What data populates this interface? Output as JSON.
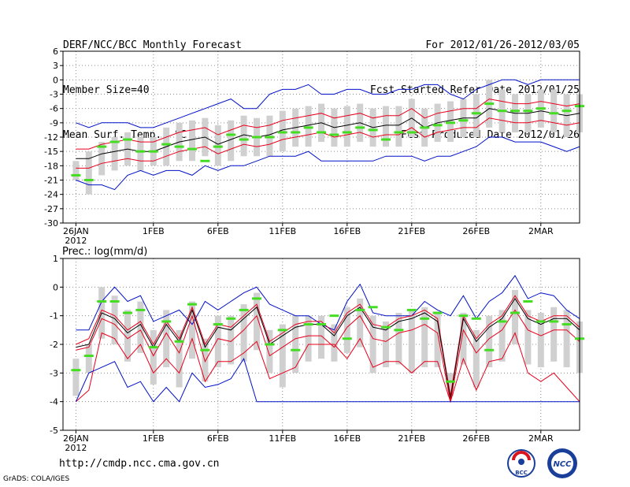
{
  "header_left": [
    "DERF/NCC/BCC Monthly Forecast",
    "Member Size=40",
    "Mean Surf. Temp.: °C"
  ],
  "header_right": [
    "For 2012/01/26-2012/03/05",
    "Fcst Started Refer Date 2012/01/25",
    "Fcst Produced Date 2012/01/26"
  ],
  "footer_url": "http://cmdp.ncc.cma.gov.cn",
  "grads_label": "GrADS: COLA/IGES",
  "logos": {
    "bcc": "BCC",
    "ncc": "NCC"
  },
  "colors": {
    "mean": "#000000",
    "spread": "#e8001c",
    "extreme": "#0010c8",
    "box": "#d0d0d0",
    "obs": "#44dd22",
    "grid": "#8c8c8c"
  },
  "chart_data": [
    {
      "type": "line",
      "title": "Mean Surf. Temp.: °C",
      "xlabel": "",
      "ylabel": "",
      "ylim": [
        -30,
        6
      ],
      "yticks": [
        6,
        3,
        0,
        -3,
        -6,
        -9,
        -12,
        -15,
        -18,
        -21,
        -24,
        -27,
        -30
      ],
      "xticks": [
        {
          "day": 0,
          "label": "26JAN",
          "sub": "2012"
        },
        {
          "day": 6,
          "label": "1FEB"
        },
        {
          "day": 11,
          "label": "6FEB"
        },
        {
          "day": 16,
          "label": "11FEB"
        },
        {
          "day": 21,
          "label": "16FEB"
        },
        {
          "day": 26,
          "label": "21FEB"
        },
        {
          "day": 31,
          "label": "26FEB"
        },
        {
          "day": 36,
          "label": "2MAR"
        }
      ],
      "x": [
        0,
        1,
        2,
        3,
        4,
        5,
        6,
        7,
        8,
        9,
        10,
        11,
        12,
        13,
        14,
        15,
        16,
        17,
        18,
        19,
        20,
        21,
        22,
        23,
        24,
        25,
        26,
        27,
        28,
        29,
        30,
        31,
        32,
        33,
        34,
        35,
        36,
        37,
        38,
        39
      ],
      "series": [
        {
          "name": "max",
          "role": "extreme",
          "values": [
            -9,
            -10,
            -9,
            -9,
            -9,
            -10,
            -10,
            -9,
            -8,
            -7,
            -6,
            -5,
            -4,
            -6,
            -6,
            -3,
            -2,
            -2,
            -1,
            -3,
            -3,
            -2,
            -2,
            -3,
            -3,
            -2,
            -2,
            -1,
            -1,
            -3,
            -4,
            -2,
            -1,
            0,
            0,
            -1,
            0,
            0,
            0,
            0
          ]
        },
        {
          "name": "upper",
          "role": "spread",
          "values": [
            -14.5,
            -14.5,
            -13.5,
            -13,
            -12.5,
            -13,
            -13,
            -12,
            -11,
            -10.5,
            -10,
            -11.5,
            -10.5,
            -9.5,
            -10,
            -9.5,
            -8.5,
            -8,
            -7.5,
            -7,
            -8,
            -7.5,
            -7,
            -8,
            -7.5,
            -7.5,
            -6,
            -8,
            -7,
            -6.5,
            -6,
            -6,
            -4,
            -4.5,
            -5,
            -5,
            -4.5,
            -5,
            -5.5,
            -5
          ]
        },
        {
          "name": "mean",
          "role": "mean",
          "values": [
            -16.5,
            -16.5,
            -15.5,
            -15,
            -14.5,
            -15,
            -15,
            -14,
            -13,
            -12.5,
            -12,
            -13.5,
            -12.5,
            -11.5,
            -12,
            -11.5,
            -10.5,
            -10,
            -9.5,
            -9,
            -10,
            -9.5,
            -9,
            -10,
            -9.5,
            -9.5,
            -8,
            -10,
            -9,
            -8.5,
            -8,
            -8,
            -6,
            -6.5,
            -7,
            -7,
            -6.5,
            -7,
            -7.5,
            -7
          ]
        },
        {
          "name": "lower",
          "role": "spread",
          "values": [
            -18.5,
            -18.5,
            -17.5,
            -17,
            -16.5,
            -17,
            -17,
            -16,
            -15,
            -14.5,
            -14,
            -15.5,
            -14.5,
            -13.5,
            -14,
            -13.5,
            -12.5,
            -12,
            -11.5,
            -11,
            -12,
            -11.5,
            -11,
            -12,
            -11.5,
            -11.5,
            -10,
            -12,
            -11,
            -10.5,
            -10,
            -10,
            -8,
            -8.5,
            -9,
            -9,
            -8.5,
            -9,
            -9.5,
            -9
          ]
        },
        {
          "name": "min",
          "role": "extreme",
          "values": [
            -21,
            -22,
            -22,
            -23,
            -20,
            -19,
            -20,
            -19,
            -19,
            -20,
            -18,
            -19,
            -18,
            -18,
            -17,
            -16,
            -16,
            -16,
            -15,
            -17,
            -17,
            -17,
            -17,
            -17,
            -16,
            -16,
            -16,
            -17,
            -16,
            -16,
            -15,
            -14,
            -12,
            -12,
            -13,
            -13,
            -13,
            -14,
            -15,
            -14
          ]
        },
        {
          "name": "box_high",
          "role": "box",
          "values": [
            -17,
            -15,
            -13,
            -12,
            -11,
            -12,
            -12,
            -10,
            -9,
            -8.5,
            -8,
            -9.5,
            -8.5,
            -7.5,
            -8,
            -7.5,
            -6.5,
            -6,
            -5.5,
            -5,
            -6,
            -5.5,
            -5,
            -6,
            -5.5,
            -5.5,
            -4,
            -6,
            -5,
            -4.5,
            -4,
            -3,
            0,
            -2,
            -3,
            -3,
            -2,
            -2,
            -3,
            -3
          ]
        },
        {
          "name": "box_low",
          "role": "box",
          "values": [
            -21,
            -24,
            -20,
            -19,
            -18,
            -19,
            -18,
            -18,
            -17,
            -17,
            -16,
            -18,
            -17,
            -16,
            -16,
            -16,
            -15,
            -14,
            -14,
            -13,
            -14,
            -14,
            -13,
            -14,
            -14,
            -14,
            -12,
            -14,
            -13,
            -13,
            -12,
            -12,
            -10,
            -11,
            -11,
            -11,
            -10,
            -11,
            -12,
            -11
          ]
        },
        {
          "name": "obs",
          "role": "obs",
          "values": [
            -20,
            -21,
            -14,
            -13,
            -12.5,
            -15,
            -15,
            -13.5,
            -14,
            -14.5,
            -17,
            -14,
            -11.5,
            -12.5,
            -12,
            -12,
            -11,
            -11,
            -10,
            -11,
            -11.5,
            -11,
            -10,
            -10.5,
            -12.5,
            -11,
            -11,
            -10,
            -9.5,
            -9,
            -8.5,
            -7,
            -5,
            -6.5,
            -6.5,
            -6.5,
            -6,
            -7,
            -6.5,
            -5.5
          ]
        }
      ]
    },
    {
      "type": "line",
      "title": "Prec.: log(mm/d)",
      "xlabel": "",
      "ylabel": "",
      "ylim": [
        -5,
        1
      ],
      "yticks": [
        1,
        0,
        -1,
        -2,
        -3,
        -4,
        -5
      ],
      "xticks": [
        {
          "day": 0,
          "label": "26JAN",
          "sub": "2012"
        },
        {
          "day": 6,
          "label": "1FEB"
        },
        {
          "day": 11,
          "label": "6FEB"
        },
        {
          "day": 16,
          "label": "11FEB"
        },
        {
          "day": 21,
          "label": "16FEB"
        },
        {
          "day": 26,
          "label": "21FEB"
        },
        {
          "day": 31,
          "label": "26FEB"
        },
        {
          "day": 36,
          "label": "2MAR"
        }
      ],
      "x": [
        0,
        1,
        2,
        3,
        4,
        5,
        6,
        7,
        8,
        9,
        10,
        11,
        12,
        13,
        14,
        15,
        16,
        17,
        18,
        19,
        20,
        21,
        22,
        23,
        24,
        25,
        26,
        27,
        28,
        29,
        30,
        31,
        32,
        33,
        34,
        35,
        36,
        37,
        38,
        39
      ],
      "series": [
        {
          "name": "max",
          "role": "extreme",
          "values": [
            -1.5,
            -1.5,
            -0.5,
            0,
            -0.5,
            -0.3,
            -1.2,
            -1,
            -0.8,
            -1.3,
            -0.5,
            -0.8,
            -0.5,
            -0.2,
            0,
            -0.6,
            -0.8,
            -1,
            -1,
            -1.3,
            -1.5,
            -0.5,
            0.1,
            -0.9,
            -1,
            -1,
            -1,
            -0.5,
            -0.8,
            -1,
            -0.3,
            -1.1,
            -0.5,
            -0.2,
            0.4,
            -0.4,
            -0.2,
            -0.3,
            -0.8,
            -1.1
          ]
        },
        {
          "name": "upper",
          "role": "spread",
          "values": [
            -2.0,
            -1.8,
            -0.8,
            -1.0,
            -1.5,
            -1.2,
            -2.0,
            -1.2,
            -1.8,
            -0.7,
            -2.0,
            -1.3,
            -1.4,
            -1.0,
            -0.6,
            -1.9,
            -1.6,
            -1.3,
            -1.2,
            -1.2,
            -1.6,
            -0.9,
            -0.6,
            -1.3,
            -1.4,
            -1.1,
            -1.0,
            -0.8,
            -1.1,
            -3.8,
            -1.0,
            -1.8,
            -1.3,
            -1.0,
            -0.3,
            -1.0,
            -1.2,
            -1.0,
            -1.0,
            -1.4
          ]
        },
        {
          "name": "mean",
          "role": "mean",
          "values": [
            -2.1,
            -2.0,
            -0.9,
            -1.1,
            -1.6,
            -1.3,
            -2.1,
            -1.3,
            -1.9,
            -0.8,
            -2.1,
            -1.4,
            -1.5,
            -1.1,
            -0.7,
            -2.0,
            -1.7,
            -1.4,
            -1.3,
            -1.3,
            -1.7,
            -1.0,
            -0.7,
            -1.4,
            -1.5,
            -1.2,
            -1.1,
            -0.9,
            -1.2,
            -3.9,
            -1.1,
            -1.9,
            -1.4,
            -1.1,
            -0.4,
            -1.1,
            -1.3,
            -1.1,
            -1.1,
            -1.5
          ]
        },
        {
          "name": "lower",
          "role": "spread",
          "values": [
            -2.2,
            -2.1,
            -1.1,
            -1.3,
            -1.8,
            -1.5,
            -2.4,
            -1.6,
            -2.3,
            -1.0,
            -2.6,
            -1.8,
            -1.9,
            -1.5,
            -1.0,
            -2.4,
            -2.1,
            -1.8,
            -1.7,
            -1.7,
            -2.1,
            -1.4,
            -1.0,
            -1.8,
            -1.9,
            -1.6,
            -1.5,
            -1.3,
            -1.6,
            -4.0,
            -1.5,
            -2.3,
            -1.8,
            -1.5,
            -0.8,
            -1.5,
            -1.7,
            -1.5,
            -1.5,
            -1.9
          ]
        },
        {
          "name": "low2",
          "role": "spread",
          "values": [
            -4.0,
            -3.6,
            -1.6,
            -1.8,
            -2.5,
            -2.0,
            -3.0,
            -2.5,
            -3.0,
            -1.8,
            -3.3,
            -2.6,
            -2.6,
            -2.3,
            -1.9,
            -3.2,
            -3.0,
            -2.8,
            -2.0,
            -2.0,
            -2.0,
            -2.5,
            -1.8,
            -2.8,
            -2.6,
            -2.6,
            -3.0,
            -2.6,
            -2.6,
            -4.0,
            -2.5,
            -3.6,
            -2.6,
            -2.5,
            -1.6,
            -3.0,
            -3.3,
            -3.0,
            -3.5,
            -4.0
          ]
        },
        {
          "name": "min",
          "role": "extreme",
          "values": [
            -4,
            -3,
            -2.8,
            -2.6,
            -3.5,
            -3.3,
            -4,
            -3.5,
            -4,
            -3,
            -3.5,
            -3.4,
            -3.2,
            -2.5,
            -4,
            -4,
            -4,
            -4,
            -4,
            -4,
            -4,
            -4,
            -4,
            -4,
            -4,
            -4,
            -4,
            -4,
            -4,
            -4,
            -4,
            -4,
            -4,
            -4,
            -4,
            -4,
            -4,
            -4,
            -4,
            -4
          ]
        },
        {
          "name": "box_high",
          "role": "box",
          "values": [
            -2.5,
            -2.0,
            0,
            -0.3,
            -0.8,
            -0.5,
            -1.5,
            -0.8,
            -1.5,
            -0.5,
            -1.8,
            -1.0,
            -1.0,
            -0.6,
            -0.2,
            -1.5,
            -1.3,
            -1.0,
            -1.0,
            -1.0,
            -1.3,
            -0.7,
            -0.4,
            -1.0,
            -1.2,
            -0.9,
            -0.8,
            -0.7,
            -0.9,
            -3.0,
            -0.9,
            -1.5,
            -1.0,
            -0.8,
            -0.1,
            -0.8,
            -0.9,
            -0.7,
            -0.8,
            -1.2
          ]
        },
        {
          "name": "box_low",
          "role": "box",
          "values": [
            -3.8,
            -3.0,
            -1.8,
            -2.0,
            -2.6,
            -2.3,
            -3.4,
            -2.8,
            -3.5,
            -2.5,
            -3.3,
            -2.8,
            -2.7,
            -2.6,
            -2.2,
            -3.0,
            -3.5,
            -3.0,
            -2.6,
            -2.5,
            -2.6,
            -2.3,
            -2.1,
            -3.0,
            -2.8,
            -2.7,
            -3.0,
            -2.8,
            -2.8,
            -3.8,
            -2.7,
            -3.5,
            -2.8,
            -2.6,
            -2.0,
            -2.7,
            -2.8,
            -2.6,
            -2.8,
            -3.0
          ]
        },
        {
          "name": "obs",
          "role": "obs",
          "values": [
            -2.9,
            -2.4,
            -0.5,
            -0.5,
            -0.9,
            -0.8,
            -2.1,
            -1.2,
            -1.9,
            -0.6,
            -2.2,
            -1.3,
            -1.1,
            -0.8,
            -0.4,
            -2.0,
            -1.5,
            -2.2,
            -1.3,
            -1.3,
            -1.0,
            -1.8,
            -0.8,
            -0.7,
            -1.4,
            -1.5,
            -0.8,
            -1.1,
            -0.9,
            -3.3,
            -1.0,
            -1.1,
            -2.2,
            -1.2,
            -0.9,
            -0.5,
            -1.2,
            -1.2,
            -1.3,
            -1.8
          ]
        }
      ]
    }
  ]
}
